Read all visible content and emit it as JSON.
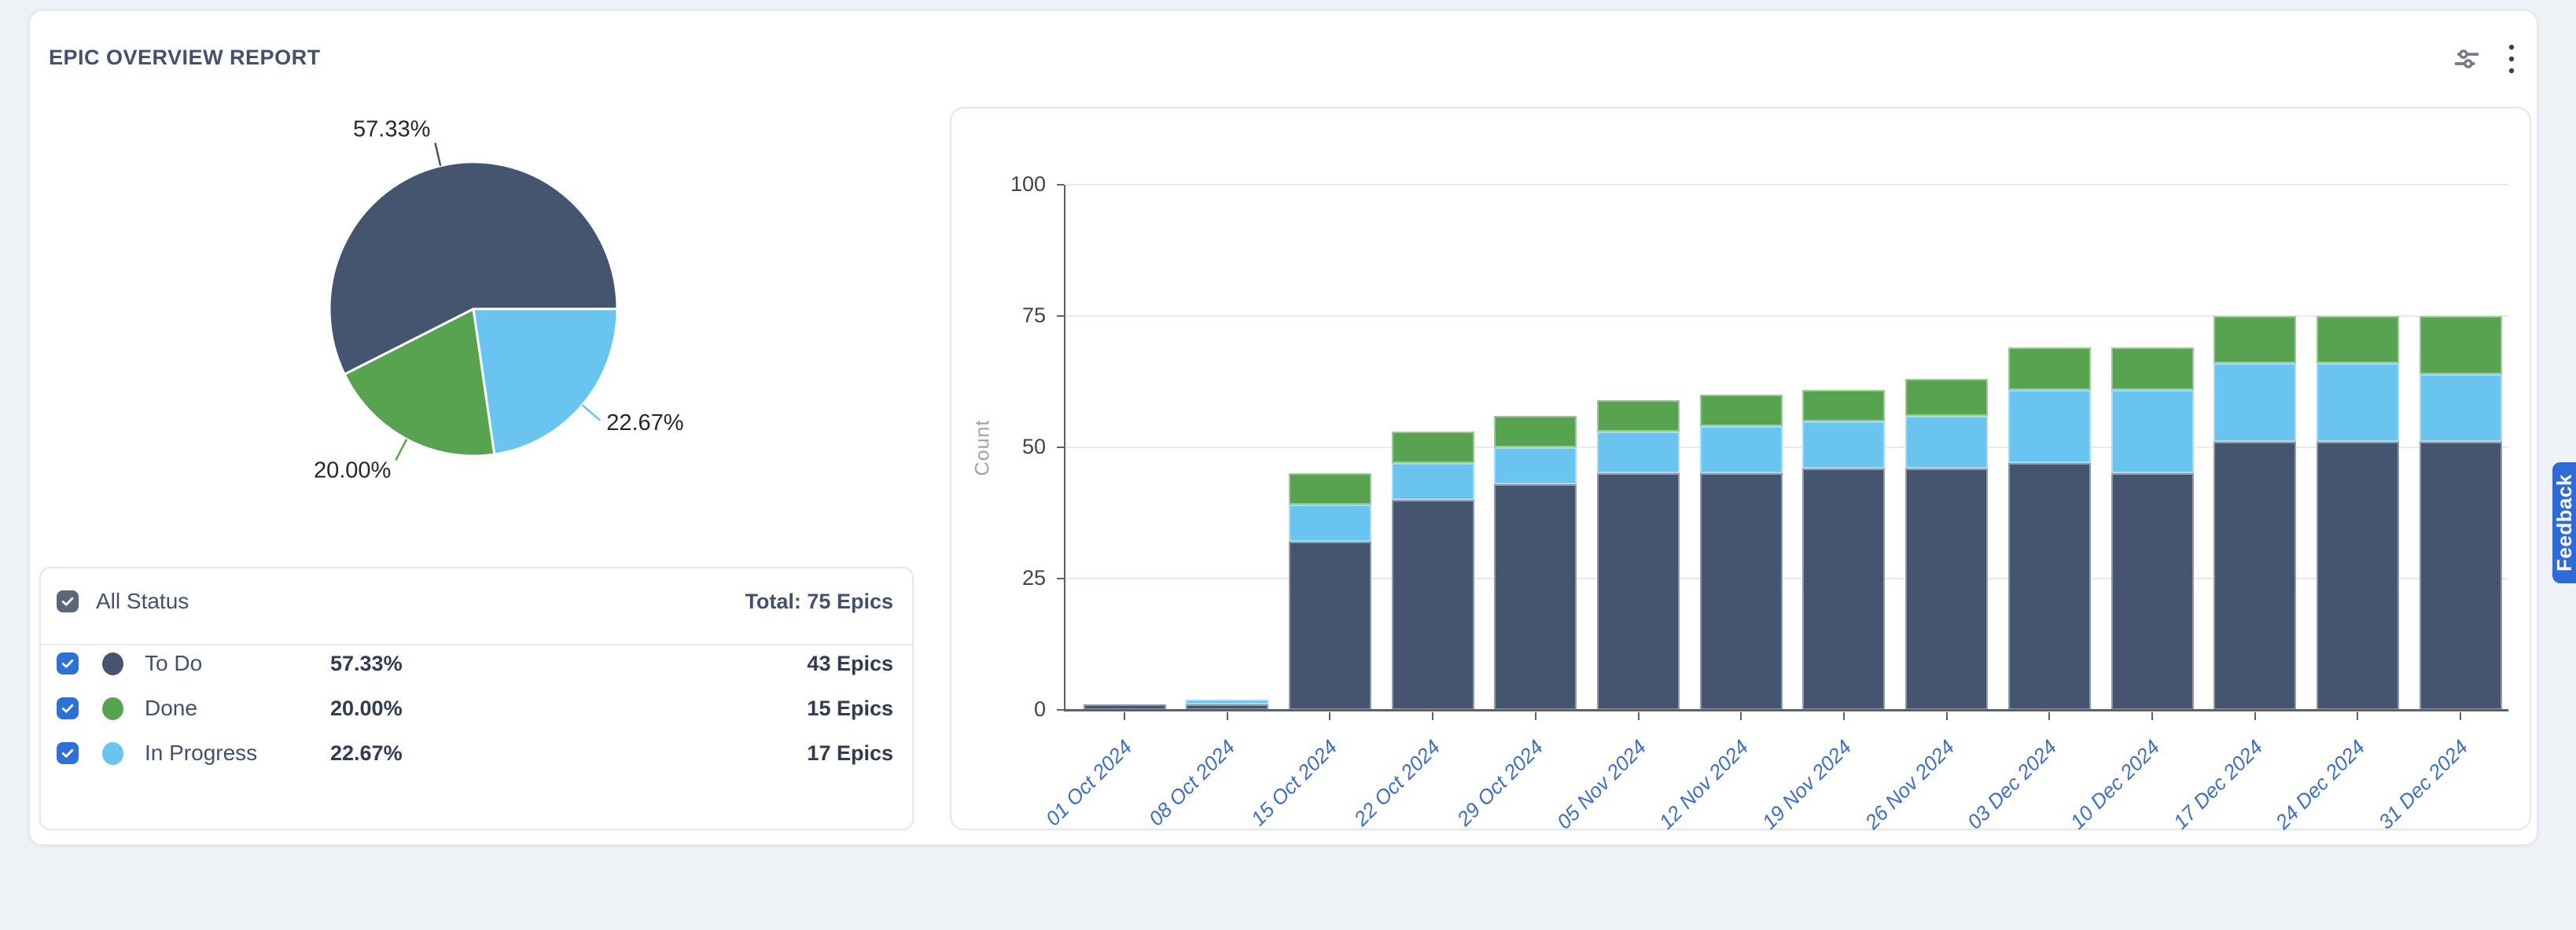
{
  "header": {
    "title": "EPIC OVERVIEW REPORT"
  },
  "toolbar": {
    "filter_icon": "filter-sliders",
    "menu_icon": "kebab-menu"
  },
  "feedback": {
    "label": "Feedback"
  },
  "colors": {
    "to_do": "#455570",
    "done": "#58A34F",
    "in_progress": "#69C4F0",
    "checkbox_blue": "#2D70D8",
    "all_checkbox_gray": "#5D6678",
    "x_label_blue": "#3D6FC2",
    "feedback_blue": "#2E6BD8",
    "text_slate": "#42526E"
  },
  "legend": {
    "all_label": "All Status",
    "total_label": "Total: 75 Epics",
    "total_epics": 75,
    "rows": [
      {
        "label": "To Do",
        "percent": "57.33%",
        "count": "43 Epics",
        "color": "#455570",
        "checked": true
      },
      {
        "label": "Done",
        "percent": "20.00%",
        "count": "15 Epics",
        "color": "#58A34F",
        "checked": true
      },
      {
        "label": "In Progress",
        "percent": "22.67%",
        "count": "17 Epics",
        "color": "#69C4F0",
        "checked": true
      }
    ]
  },
  "chart_data": [
    {
      "type": "pie",
      "title": "Epic status distribution",
      "slices": [
        {
          "name": "To Do",
          "value": 57.33,
          "label": "57.33%",
          "color": "#455570"
        },
        {
          "name": "Done",
          "value": 20.0,
          "label": "20.00%",
          "color": "#58A34F"
        },
        {
          "name": "In Progress",
          "value": 22.67,
          "label": "22.67%",
          "color": "#69C4F0"
        }
      ],
      "clockwise_order_from_east": [
        "In Progress",
        "Done",
        "To Do"
      ],
      "labels_outside": true
    },
    {
      "type": "bar",
      "stacked": true,
      "categories": [
        "01 Oct 2024",
        "08 Oct 2024",
        "15 Oct 2024",
        "22 Oct 2024",
        "29 Oct 2024",
        "05 Nov 2024",
        "12 Nov 2024",
        "19 Nov 2024",
        "26 Nov 2024",
        "03 Dec 2024",
        "10 Dec 2024",
        "17 Dec 2024",
        "24 Dec 2024",
        "31 Dec 2024"
      ],
      "series": [
        {
          "name": "To Do",
          "color": "#455570",
          "values": [
            1,
            1,
            32,
            40,
            43,
            45,
            45,
            46,
            46,
            47,
            45,
            51,
            51,
            51
          ]
        },
        {
          "name": "In Progress",
          "color": "#69C4F0",
          "values": [
            0,
            1,
            7,
            7,
            7,
            8,
            9,
            9,
            10,
            14,
            16,
            15,
            15,
            13
          ]
        },
        {
          "name": "Done",
          "color": "#58A34F",
          "values": [
            0,
            0,
            6,
            6,
            6,
            6,
            6,
            6,
            7,
            8,
            8,
            9,
            9,
            11
          ]
        }
      ],
      "totals": [
        1,
        2,
        45,
        53,
        56,
        59,
        60,
        61,
        63,
        69,
        69,
        75,
        75,
        75
      ],
      "xlabel": "",
      "ylabel": "Count",
      "yticks": [
        0,
        25,
        50,
        75,
        100
      ],
      "ylim": [
        0,
        100
      ],
      "grid": true,
      "x_label_rotation_deg": -45,
      "legend_position": "none"
    }
  ]
}
